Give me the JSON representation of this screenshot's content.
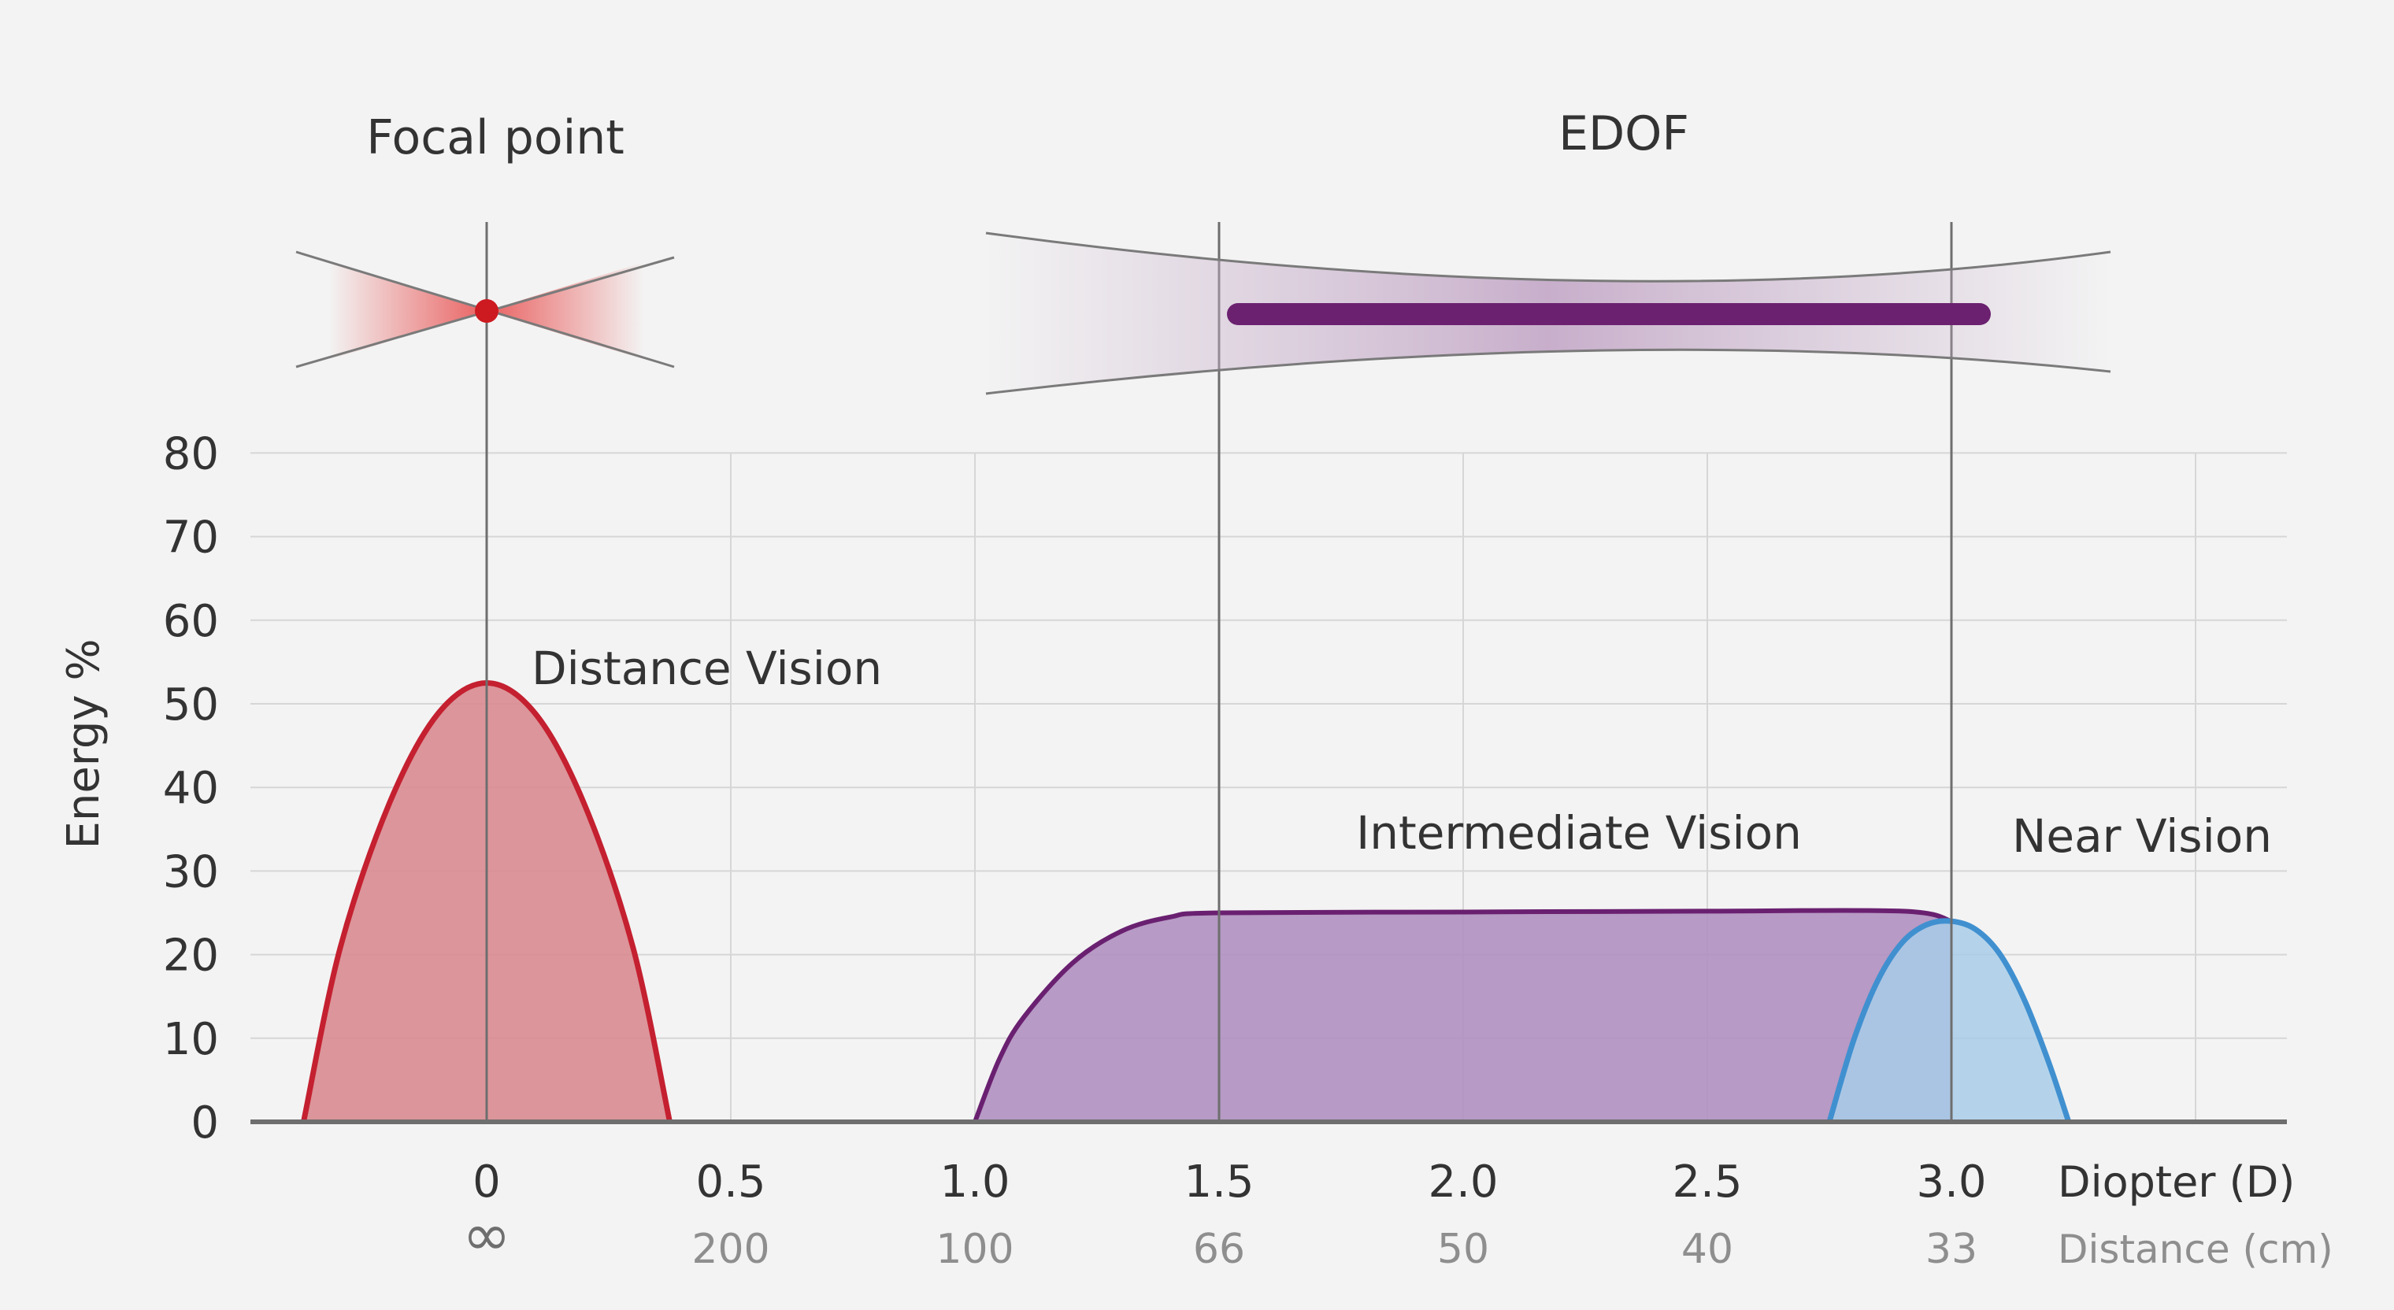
{
  "chart_data": {
    "type": "area",
    "headers": {
      "left": "Focal point",
      "right": "EDOF"
    },
    "ylabel": "Energy %",
    "ylim": [
      0,
      80
    ],
    "yticks": [
      0,
      10,
      20,
      30,
      40,
      50,
      60,
      70,
      80
    ],
    "xlim": [
      -0.5,
      3.5
    ],
    "x_ticks": [
      {
        "value": 0,
        "diopter": "0",
        "distance": "∞"
      },
      {
        "value": 0.5,
        "diopter": "0.5",
        "distance": "200"
      },
      {
        "value": 1.0,
        "diopter": "1.0",
        "distance": "100"
      },
      {
        "value": 1.5,
        "diopter": "1.5",
        "distance": "66"
      },
      {
        "value": 2.0,
        "diopter": "2.0",
        "distance": "50"
      },
      {
        "value": 2.5,
        "diopter": "2.5",
        "distance": "40"
      },
      {
        "value": 3.0,
        "diopter": "3.0",
        "distance": "33"
      }
    ],
    "x_unit_labels": {
      "diopter": "Diopter (D)",
      "distance": "Distance (cm)"
    },
    "grid": true,
    "series": [
      {
        "name": "Distance Vision",
        "color": "#c42030",
        "fill": "#d98b90",
        "x": [
          -0.375,
          -0.3,
          -0.2,
          -0.1,
          0,
          0.1,
          0.2,
          0.3,
          0.375
        ],
        "y": [
          0,
          20.8,
          38,
          48.8,
          52.5,
          48.8,
          38,
          20.8,
          0
        ]
      },
      {
        "name": "Intermediate Vision",
        "color": "#6a2070",
        "fill": "#b090c0",
        "x": [
          1.0,
          1.05,
          1.1,
          1.2,
          1.3,
          1.4,
          1.5,
          2.0,
          2.5,
          2.9,
          3.0
        ],
        "y": [
          0,
          7.5,
          12.5,
          19,
          22.8,
          24.5,
          25,
          25.1,
          25.2,
          25.2,
          24
        ],
        "x_end": 3.0
      },
      {
        "name": "Near Vision",
        "color": "#4090d0",
        "fill": "#a8cce8",
        "x": [
          2.75,
          2.8,
          2.85,
          2.9,
          2.95,
          3.0,
          3.05,
          3.1,
          3.15,
          3.2,
          3.24
        ],
        "y": [
          0,
          9.8,
          17,
          21.5,
          23.6,
          24,
          23,
          20,
          14.5,
          7,
          0
        ]
      }
    ],
    "vertical_markers": [
      0,
      1.5,
      3.0
    ]
  }
}
